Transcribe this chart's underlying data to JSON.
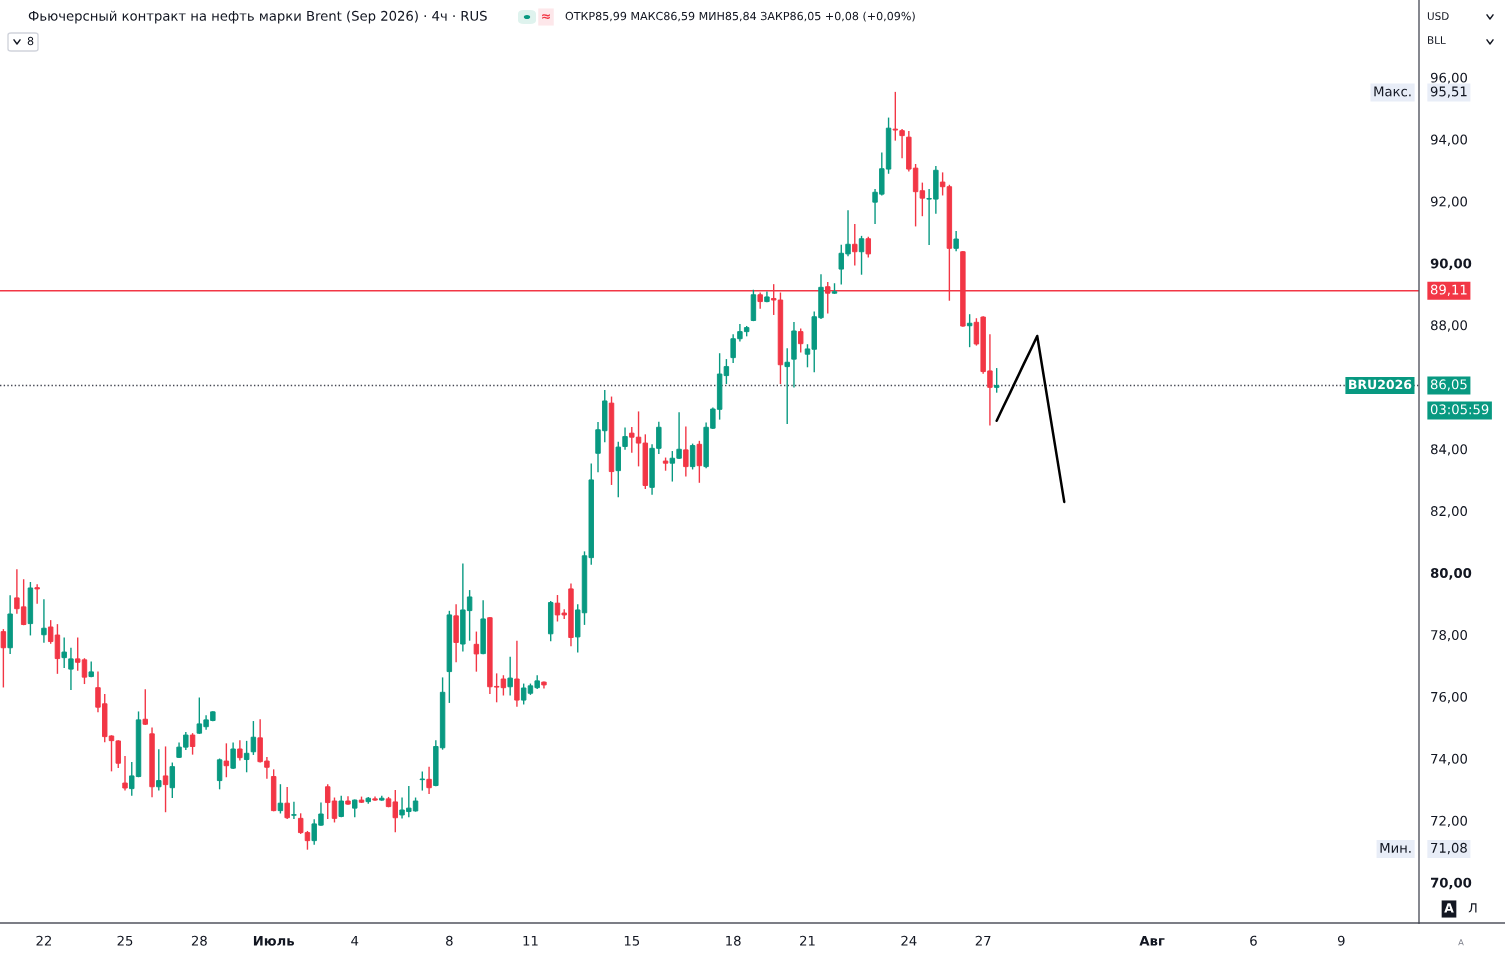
{
  "chart_data": {
    "type": "candlestick",
    "title": "Фьючерсный контракт на нефть марки Brent (Sep 2026) · 4ч · RUS",
    "subtitle": "ОТКР85,99 МАКС86,59 МИН85,84 ЗАКР86,05 +0,08 (+0,09%)",
    "categories": [
      null,
      null,
      null,
      null,
      null,
      null,
      "22",
      null,
      null,
      null,
      null,
      null,
      null,
      null,
      null,
      null,
      null,
      null,
      "25",
      null,
      null,
      null,
      null,
      null,
      null,
      null,
      null,
      null,
      null,
      "28",
      null,
      null,
      null,
      null,
      null,
      null,
      null,
      null,
      null,
      null,
      "Июль",
      null,
      null,
      null,
      null,
      null,
      null,
      null,
      null,
      null,
      null,
      null,
      "4",
      null,
      null,
      null,
      null,
      null,
      null,
      null,
      null,
      null,
      null,
      null,
      null,
      null,
      "8",
      null,
      null,
      null,
      null,
      null,
      null,
      null,
      null,
      null,
      null,
      null,
      "11",
      null,
      null,
      null,
      null,
      null,
      null,
      null,
      null,
      null,
      null,
      null,
      null,
      null,
      null,
      "15",
      null,
      null,
      null,
      null,
      null,
      null,
      null,
      null,
      null,
      null,
      null,
      null,
      null,
      null,
      "18",
      null,
      null,
      null,
      null,
      null,
      null,
      null,
      null,
      null,
      null,
      "21",
      null,
      null,
      null,
      null,
      null,
      null,
      null,
      null,
      null,
      null,
      null,
      null,
      null,
      null,
      "24",
      null,
      null,
      null,
      null,
      null,
      null,
      null,
      null,
      null,
      null,
      "27",
      null,
      null,
      null,
      null,
      null,
      null,
      null,
      null,
      null,
      null,
      null,
      null,
      null,
      null,
      null,
      null,
      null,
      null,
      null,
      null,
      null,
      null,
      null,
      null,
      "Авг",
      null,
      null,
      null,
      null,
      null,
      null,
      null,
      null,
      null,
      null,
      null,
      null,
      null,
      null,
      "6",
      null,
      null,
      null,
      null,
      null,
      null,
      null,
      null,
      null,
      null,
      null,
      null,
      "9",
      null,
      null,
      null,
      null,
      null,
      null,
      null,
      null,
      null,
      null,
      null
    ],
    "ohlc": [
      [
        78.1,
        78.16,
        76.32,
        77.58
      ],
      [
        77.58,
        79.25,
        77.4,
        78.67
      ],
      [
        79.19,
        80.09,
        78.7,
        78.84
      ],
      [
        78.9,
        79.77,
        78.33,
        78.33
      ],
      [
        78.36,
        79.68,
        78.0,
        79.51
      ],
      [
        79.52,
        79.61,
        79.02,
        79.48
      ],
      [
        78.0,
        79.12,
        77.76,
        78.21
      ],
      [
        78.25,
        78.45,
        77.73,
        77.78
      ],
      [
        77.99,
        78.32,
        76.76,
        77.23
      ],
      [
        77.26,
        77.89,
        76.95,
        77.44
      ],
      [
        76.89,
        77.56,
        76.24,
        77.22
      ],
      [
        77.22,
        77.89,
        76.86,
        77.11
      ],
      [
        77.19,
        77.22,
        76.43,
        76.63
      ],
      [
        76.65,
        77.11,
        76.65,
        76.8
      ],
      [
        76.29,
        76.79,
        75.52,
        75.66
      ],
      [
        75.77,
        76.06,
        74.55,
        74.71
      ],
      [
        74.73,
        74.73,
        73.61,
        74.58
      ],
      [
        74.57,
        74.57,
        73.72,
        73.85
      ],
      [
        73.21,
        74.06,
        72.99,
        73.05
      ],
      [
        73.03,
        73.87,
        72.82,
        73.44
      ],
      [
        73.42,
        75.5,
        73.42,
        75.25
      ],
      [
        75.27,
        76.22,
        75.11,
        75.11
      ],
      [
        74.8,
        74.98,
        72.77,
        73.09
      ],
      [
        73.09,
        74.28,
        72.99,
        73.29
      ],
      [
        73.44,
        74.37,
        72.29,
        73.16
      ],
      [
        73.06,
        73.85,
        72.75,
        73.74
      ],
      [
        74.04,
        74.5,
        74.04,
        74.37
      ],
      [
        74.37,
        74.84,
        74.3,
        74.76
      ],
      [
        74.76,
        74.8,
        74.15,
        74.39
      ],
      [
        74.82,
        75.95,
        74.82,
        75.12
      ],
      [
        75.03,
        75.38,
        74.95,
        75.25
      ],
      [
        75.23,
        75.51,
        75.23,
        75.51
      ],
      [
        73.29,
        73.98,
        73.03,
        73.96
      ],
      [
        73.92,
        74.47,
        73.42,
        73.77
      ],
      [
        73.69,
        74.5,
        73.69,
        74.31
      ],
      [
        74.31,
        74.57,
        73.96,
        74.03
      ],
      [
        73.97,
        74.55,
        73.58,
        74.17
      ],
      [
        74.22,
        75.19,
        74.14,
        74.69
      ],
      [
        74.67,
        75.25,
        73.9,
        73.9
      ],
      [
        73.92,
        74.03,
        73.37,
        73.72
      ],
      [
        73.42,
        73.63,
        72.32,
        72.32
      ],
      [
        72.32,
        73.15,
        72.25,
        72.56
      ],
      [
        72.56,
        73.06,
        72.07,
        72.09
      ],
      [
        72.17,
        72.58,
        72.07,
        72.19
      ],
      [
        72.07,
        72.21,
        71.59,
        71.61
      ],
      [
        71.61,
        71.64,
        71.08,
        71.35
      ],
      [
        71.35,
        72.02,
        71.24,
        71.89
      ],
      [
        71.85,
        72.56,
        71.85,
        72.21
      ],
      [
        73.09,
        73.15,
        72.07,
        72.58
      ],
      [
        72.63,
        72.72,
        71.96,
        72.07
      ],
      [
        72.13,
        72.78,
        72.13,
        72.63
      ],
      [
        72.63,
        72.76,
        72.53,
        72.53
      ],
      [
        72.4,
        72.66,
        72.13,
        72.66
      ],
      [
        72.66,
        72.75,
        72.59,
        72.59
      ],
      [
        72.61,
        72.74,
        72.56,
        72.72
      ],
      [
        72.7,
        72.75,
        72.66,
        72.66
      ],
      [
        72.66,
        72.78,
        72.66,
        72.72
      ],
      [
        72.7,
        72.74,
        72.45,
        72.45
      ],
      [
        72.6,
        72.96,
        71.64,
        72.09
      ],
      [
        72.18,
        72.72,
        72.09,
        72.34
      ],
      [
        72.29,
        73.09,
        72.13,
        72.4
      ],
      [
        72.31,
        72.72,
        72.31,
        72.63
      ],
      [
        73.32,
        73.56,
        72.99,
        73.34
      ],
      [
        73.33,
        73.71,
        72.88,
        73.06
      ],
      [
        73.13,
        74.57,
        73.13,
        74.39
      ],
      [
        74.35,
        76.6,
        74.31,
        76.14
      ],
      [
        76.81,
        78.75,
        75.82,
        78.64
      ],
      [
        78.61,
        78.96,
        77.13,
        77.75
      ],
      [
        77.7,
        80.28,
        77.48,
        78.8
      ],
      [
        78.78,
        79.42,
        77.83,
        79.22
      ],
      [
        77.69,
        78.08,
        76.83,
        77.38
      ],
      [
        77.39,
        79.09,
        77.39,
        78.51
      ],
      [
        78.55,
        78.55,
        76.11,
        76.32
      ],
      [
        76.33,
        76.73,
        75.84,
        76.31
      ],
      [
        76.57,
        76.67,
        76.06,
        76.29
      ],
      [
        76.32,
        77.27,
        76.06,
        76.6
      ],
      [
        76.57,
        77.78,
        75.7,
        75.89
      ],
      [
        75.89,
        76.4,
        75.77,
        76.28
      ],
      [
        76.11,
        76.4,
        76.08,
        76.35
      ],
      [
        76.29,
        76.67,
        76.27,
        76.51
      ],
      [
        76.47,
        76.47,
        76.29,
        76.38
      ],
      [
        78.03,
        79.07,
        77.81,
        79.04
      ],
      [
        79.02,
        79.26,
        78.45,
        78.64
      ],
      [
        78.7,
        78.8,
        78.53,
        78.64
      ],
      [
        79.48,
        79.63,
        77.65,
        77.91
      ],
      [
        77.93,
        78.96,
        77.45,
        78.8
      ],
      [
        78.71,
        80.67,
        78.34,
        80.55
      ],
      [
        80.49,
        83.51,
        80.28,
        83.0
      ],
      [
        83.86,
        84.85,
        83.27,
        84.62
      ],
      [
        84.59,
        85.88,
        84.24,
        85.55
      ],
      [
        85.48,
        85.67,
        82.86,
        83.27
      ],
      [
        83.3,
        84.21,
        82.46,
        84.06
      ],
      [
        84.08,
        84.67,
        84.0,
        84.4
      ],
      [
        84.51,
        84.69,
        83.9,
        84.38
      ],
      [
        84.38,
        85.19,
        83.46,
        84.19
      ],
      [
        84.19,
        84.45,
        82.73,
        82.82
      ],
      [
        82.76,
        84.13,
        82.54,
        84.02
      ],
      [
        84.02,
        84.86,
        83.86,
        84.7
      ],
      [
        83.61,
        83.7,
        83.32,
        83.54
      ],
      [
        83.54,
        83.91,
        82.97,
        83.7
      ],
      [
        83.7,
        85.16,
        83.7,
        83.99
      ],
      [
        83.97,
        84.7,
        83.13,
        83.43
      ],
      [
        83.43,
        84.15,
        83.36,
        84.11
      ],
      [
        84.15,
        84.24,
        82.93,
        83.46
      ],
      [
        83.43,
        84.83,
        83.4,
        84.7
      ],
      [
        84.67,
        85.32,
        84.67,
        85.29
      ],
      [
        85.28,
        87.07,
        84.97,
        86.42
      ],
      [
        86.37,
        86.88,
        86.12,
        86.66
      ],
      [
        86.95,
        87.68,
        86.8,
        87.56
      ],
      [
        87.56,
        88.01,
        87.49,
        87.79
      ],
      [
        87.79,
        87.95,
        87.66,
        87.92
      ],
      [
        88.15,
        89.12,
        88.15,
        88.98
      ],
      [
        88.98,
        89.03,
        88.55,
        88.76
      ],
      [
        88.76,
        89.06,
        88.76,
        88.91
      ],
      [
        88.86,
        89.3,
        88.35,
        88.81
      ],
      [
        88.81,
        89.03,
        86.12,
        86.72
      ],
      [
        86.66,
        87.23,
        84.83,
        86.8
      ],
      [
        86.9,
        88.08,
        86.01,
        87.81
      ],
      [
        87.79,
        87.87,
        87.14,
        87.4
      ],
      [
        87.06,
        87.36,
        86.66,
        87.23
      ],
      [
        87.22,
        88.42,
        86.5,
        88.27
      ],
      [
        88.24,
        89.62,
        88.22,
        89.22
      ],
      [
        89.24,
        89.37,
        88.4,
        89.03
      ],
      [
        89.03,
        89.33,
        89.03,
        89.08
      ],
      [
        89.81,
        90.57,
        89.33,
        90.32
      ],
      [
        90.3,
        91.69,
        90.25,
        90.61
      ],
      [
        90.61,
        91.24,
        89.95,
        90.37
      ],
      [
        90.37,
        90.86,
        89.65,
        90.79
      ],
      [
        90.79,
        90.83,
        90.21,
        90.3
      ],
      [
        91.97,
        92.37,
        91.29,
        92.29
      ],
      [
        92.23,
        93.55,
        92.21,
        93.05
      ],
      [
        93.04,
        94.68,
        92.91,
        94.36
      ],
      [
        94.33,
        95.51,
        93.98,
        94.3
      ],
      [
        94.28,
        94.31,
        93.41,
        94.12
      ],
      [
        94.07,
        94.25,
        92.98,
        93.04
      ],
      [
        93.07,
        93.18,
        91.21,
        92.31
      ],
      [
        92.34,
        92.58,
        91.54,
        92.1
      ],
      [
        92.07,
        92.37,
        90.61,
        92.09
      ],
      [
        92.07,
        93.12,
        91.62,
        93.0
      ],
      [
        92.62,
        92.91,
        92.21,
        92.47
      ],
      [
        92.47,
        92.51,
        88.81,
        90.48
      ],
      [
        90.48,
        91.02,
        90.41,
        90.78
      ],
      [
        90.37,
        90.37,
        87.97,
        87.97
      ],
      [
        87.98,
        88.33,
        87.31,
        88.06
      ],
      [
        88.09,
        88.2,
        87.36,
        87.39
      ],
      [
        88.26,
        88.26,
        86.45,
        86.5
      ],
      [
        86.52,
        87.68,
        84.78,
        85.99
      ],
      [
        85.99,
        86.59,
        85.84,
        86.05
      ],
      null,
      null,
      null,
      null,
      null,
      null,
      null,
      null,
      null,
      null,
      null,
      null,
      null,
      null,
      null,
      null,
      null,
      null,
      null,
      null,
      null,
      null,
      null,
      null,
      null,
      null,
      null,
      null,
      null,
      null,
      null,
      null,
      null,
      null,
      null,
      null,
      null,
      null,
      null,
      null,
      null,
      null,
      null,
      null,
      null,
      null,
      null,
      null,
      null,
      null,
      null,
      null,
      null,
      null,
      null,
      null,
      null,
      null,
      null,
      null,
      null,
      null
    ],
    "series": [
      {
        "type": "line",
        "color": "#000000",
        "values": [
          null,
          null,
          null,
          null,
          null,
          null,
          null,
          null,
          null,
          null,
          null,
          null,
          null,
          null,
          null,
          null,
          null,
          null,
          null,
          null,
          null,
          null,
          null,
          null,
          null,
          null,
          null,
          null,
          null,
          null,
          null,
          null,
          null,
          null,
          null,
          null,
          null,
          null,
          null,
          null,
          null,
          null,
          null,
          null,
          null,
          null,
          null,
          null,
          null,
          null,
          null,
          null,
          null,
          null,
          null,
          null,
          null,
          null,
          null,
          null,
          null,
          null,
          null,
          null,
          null,
          null,
          null,
          null,
          null,
          null,
          null,
          null,
          null,
          null,
          null,
          null,
          null,
          null,
          null,
          null,
          null,
          null,
          null,
          null,
          null,
          null,
          null,
          null,
          null,
          null,
          null,
          null,
          null,
          null,
          null,
          null,
          null,
          null,
          null,
          null,
          null,
          null,
          null,
          null,
          null,
          null,
          null,
          null,
          null,
          null,
          null,
          null,
          null,
          null,
          null,
          null,
          null,
          null,
          null,
          null,
          null,
          null,
          null,
          null,
          null,
          null,
          null,
          null,
          null,
          null,
          null,
          null,
          null,
          null,
          null,
          null,
          null,
          null,
          null,
          null,
          null,
          null,
          null,
          null,
          null,
          null,
          null,
          84.91,
          85.37,
          85.82,
          86.28,
          86.74,
          87.19,
          87.65,
          86.31,
          84.97,
          83.63,
          82.29,
          null,
          null,
          null,
          null,
          null,
          null,
          null,
          null,
          null,
          null,
          null,
          null,
          null,
          null,
          null,
          null,
          null,
          null,
          null,
          null,
          null,
          null,
          null,
          null,
          null,
          null,
          null,
          null,
          null,
          null,
          null,
          null,
          null,
          null,
          null,
          null,
          null,
          null,
          null,
          null,
          null,
          null,
          null,
          null,
          null,
          null,
          null,
          null,
          null,
          null,
          null,
          null
        ]
      }
    ],
    "ylim": [
      68.69,
      98.5
    ],
    "yticks": [
      {
        "value": 70,
        "label": "70,00"
      },
      {
        "value": 72,
        "label": "72,00"
      },
      {
        "value": 74,
        "label": "74,00"
      },
      {
        "value": 76,
        "label": "76,00"
      },
      {
        "value": 78,
        "label": "78,00"
      },
      {
        "value": 80,
        "label": "80,00"
      },
      {
        "value": 82,
        "label": "82,00"
      },
      {
        "value": 84,
        "label": "84,00"
      },
      {
        "value": 88,
        "label": "88,00"
      },
      {
        "value": 90,
        "label": "90,00"
      },
      {
        "value": 92,
        "label": "92,00"
      },
      {
        "value": 94,
        "label": "94,00"
      },
      {
        "value": 96,
        "label": "96,00"
      }
    ],
    "ref_lines": [
      {
        "axis": "y",
        "value": 89.11,
        "label": "89,11",
        "color": "#f23645",
        "line_style": "solid"
      },
      {
        "axis": "y",
        "value": 86.05,
        "label": "86,05",
        "color": "#434651",
        "line_style": "dotted"
      }
    ],
    "annotations": [
      "8",
      "≈",
      "USD",
      "BLL",
      "Макс.",
      "95,51",
      "BRU2026",
      "03:05:59",
      "Мин.",
      "71,08",
      "A",
      "Л",
      "A"
    ]
  }
}
